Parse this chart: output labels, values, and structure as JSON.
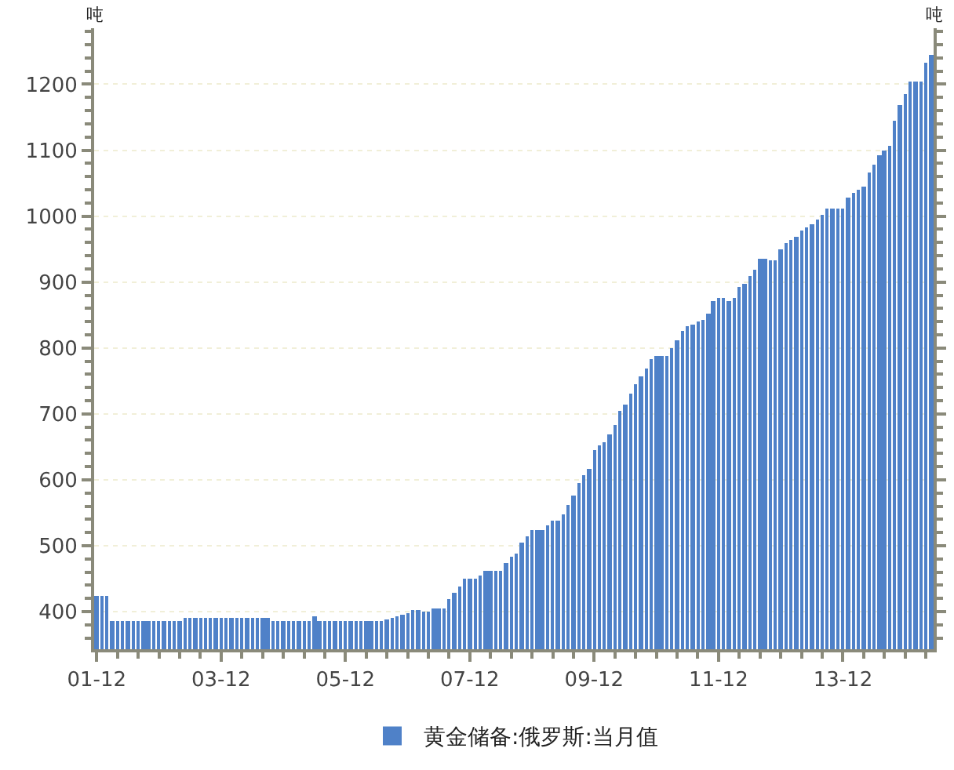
{
  "chart_data": {
    "type": "bar",
    "categories": [
      "01-12",
      null,
      null,
      null,
      null,
      null,
      null,
      null,
      null,
      null,
      null,
      null,
      null,
      null,
      null,
      null,
      null,
      null,
      null,
      null,
      null,
      null,
      null,
      null,
      "03-12",
      null,
      null,
      null,
      null,
      null,
      null,
      null,
      null,
      null,
      null,
      null,
      null,
      null,
      null,
      null,
      null,
      null,
      null,
      null,
      null,
      null,
      null,
      null,
      "05-12",
      null,
      null,
      null,
      null,
      null,
      null,
      null,
      null,
      null,
      null,
      null,
      null,
      null,
      null,
      null,
      null,
      null,
      null,
      null,
      null,
      null,
      null,
      null,
      "07-12",
      null,
      null,
      null,
      null,
      null,
      null,
      null,
      null,
      null,
      null,
      null,
      null,
      null,
      null,
      null,
      null,
      null,
      null,
      null,
      null,
      null,
      null,
      null,
      "09-12",
      null,
      null,
      null,
      null,
      null,
      null,
      null,
      null,
      null,
      null,
      null,
      null,
      null,
      null,
      null,
      null,
      null,
      null,
      null,
      null,
      null,
      null,
      null,
      "11-12",
      null,
      null,
      null,
      null,
      null,
      null,
      null,
      null,
      null,
      null,
      null,
      null,
      null,
      null,
      null,
      null,
      null,
      null,
      null,
      null,
      null,
      null,
      null,
      "13-12",
      null,
      null,
      null,
      null,
      null,
      null,
      null,
      null,
      null,
      null,
      null,
      null,
      null,
      null,
      null,
      null,
      null
    ],
    "series": [
      {
        "name": "黄金储备:俄罗斯:当月值",
        "color": "#4f81c8",
        "values": [
          423,
          425,
          425,
          386,
          386,
          386,
          386,
          386,
          386,
          386,
          386,
          386,
          386,
          386,
          386,
          386,
          386,
          390,
          390,
          390,
          390,
          390,
          390,
          390,
          390,
          390,
          390,
          390,
          390,
          390,
          390,
          390,
          390,
          390,
          387,
          387,
          387,
          387,
          387,
          387,
          387,
          387,
          393,
          386,
          386,
          386,
          386,
          386,
          386,
          386,
          386,
          386,
          386,
          386,
          386,
          386,
          388,
          390,
          392,
          395,
          398,
          402,
          402,
          400,
          400,
          404,
          404,
          405,
          418,
          428,
          437,
          451,
          451,
          451,
          455,
          463,
          463,
          463,
          463,
          475,
          483,
          489,
          505,
          514,
          524,
          524,
          524,
          532,
          538,
          538,
          548,
          563,
          575,
          595,
          607,
          617,
          645,
          652,
          657,
          670,
          683,
          705,
          715,
          730,
          745,
          757,
          770,
          782,
          788,
          788,
          788,
          800,
          812,
          825,
          832,
          836,
          840,
          842,
          851,
          870,
          877,
          877,
          872,
          876,
          893,
          898,
          909,
          918,
          935,
          935,
          932,
          933,
          949,
          959,
          964,
          969,
          978,
          984,
          987,
          995,
          1003,
          1012,
          1012,
          1012,
          1012,
          1028,
          1035,
          1040,
          1045,
          1066,
          1078,
          1092,
          1100,
          1107,
          1144,
          1168,
          1186,
          1203,
          1203,
          1203,
          1232,
          1244
        ]
      }
    ],
    "ylim": [
      343,
      1285
    ],
    "yticks": [
      400,
      500,
      600,
      700,
      800,
      900,
      1000,
      1100,
      1200
    ],
    "grid": "y",
    "legend": "bottom",
    "annotations": [
      "吨",
      "吨"
    ]
  }
}
